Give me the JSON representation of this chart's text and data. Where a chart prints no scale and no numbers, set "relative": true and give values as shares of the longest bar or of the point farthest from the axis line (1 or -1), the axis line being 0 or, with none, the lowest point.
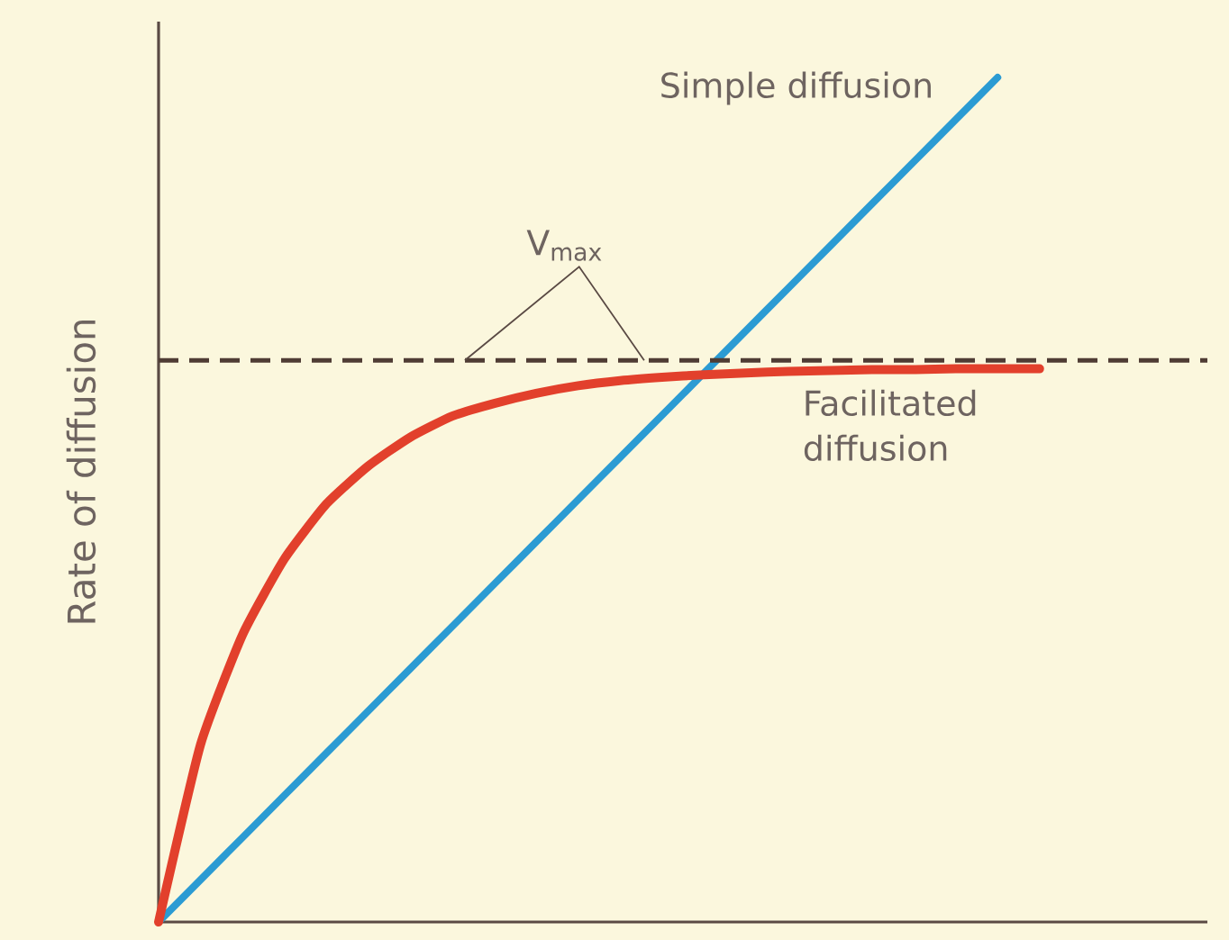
{
  "chart_data": {
    "type": "line",
    "relative": true,
    "ylabel": "Rate of diffusion",
    "categories": [
      null,
      null,
      null,
      null,
      null,
      null,
      null,
      null,
      null,
      null,
      null,
      null,
      null,
      null,
      null,
      null,
      null,
      null,
      null,
      null,
      null,
      null,
      null,
      null,
      null,
      null
    ],
    "series": [
      {
        "name": "Simple diffusion",
        "color": "#2b9bd3",
        "values": [
          0,
          0.05,
          0.1,
          0.15,
          0.2,
          0.25,
          0.3,
          0.35,
          0.4,
          0.45,
          0.5,
          0.55,
          0.6,
          0.65,
          0.7,
          0.75,
          0.8,
          0.85,
          0.9,
          0.95,
          1,
          null,
          null,
          null,
          null,
          null
        ]
      },
      {
        "name": "Facilitated diffusion",
        "color": "#e2402c",
        "values": [
          0,
          0.21,
          0.34,
          0.43,
          0.495,
          0.54,
          0.574,
          0.599,
          0.614,
          0.626,
          0.635,
          0.641,
          0.645,
          0.648,
          0.65,
          0.652,
          0.653,
          0.654,
          0.654,
          0.655,
          0.655,
          0.655,
          null,
          null,
          null,
          null
        ]
      }
    ],
    "ref_lines": [
      {
        "axis": "y",
        "value": 0.665,
        "label": "V$_{max}$",
        "color": "#4f3c34",
        "line_style": "dashed"
      }
    ]
  }
}
